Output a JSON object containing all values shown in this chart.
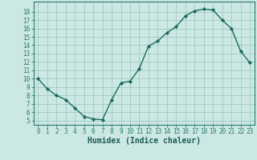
{
  "x": [
    0,
    1,
    2,
    3,
    4,
    5,
    6,
    7,
    8,
    9,
    10,
    11,
    12,
    13,
    14,
    15,
    16,
    17,
    18,
    19,
    20,
    21,
    22,
    23
  ],
  "y": [
    10,
    8.8,
    8.0,
    7.5,
    6.5,
    5.5,
    5.2,
    5.1,
    7.5,
    9.5,
    9.7,
    11.2,
    13.9,
    14.5,
    15.5,
    16.2,
    17.5,
    18.1,
    18.3,
    18.2,
    17.0,
    16.0,
    13.3,
    11.9
  ],
  "line_color": "#1a6b5a",
  "marker": "D",
  "marker_size": 2.2,
  "bg_color": "#cce8e4",
  "grid_color": "#a0c8c2",
  "xlabel": "Humidex (Indice chaleur)",
  "ylabel_ticks": [
    5,
    6,
    7,
    8,
    9,
    10,
    11,
    12,
    13,
    14,
    15,
    16,
    17,
    18
  ],
  "xlim": [
    -0.5,
    23.5
  ],
  "ylim": [
    4.5,
    19.2
  ],
  "xticks": [
    0,
    1,
    2,
    3,
    4,
    5,
    6,
    7,
    8,
    9,
    10,
    11,
    12,
    13,
    14,
    15,
    16,
    17,
    18,
    19,
    20,
    21,
    22,
    23
  ],
  "font_color": "#1a5c50",
  "axis_color": "#2a7a68",
  "tick_fontsize": 5.5,
  "xlabel_fontsize": 7.0
}
